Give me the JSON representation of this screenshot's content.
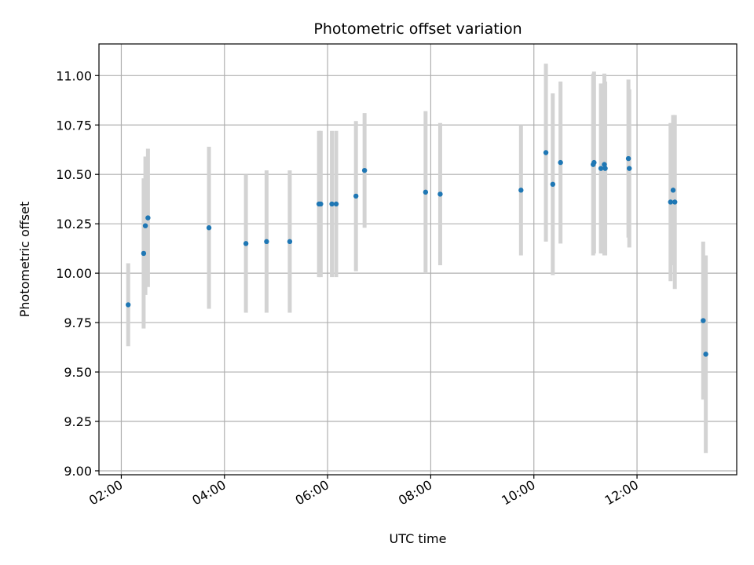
{
  "chart_data": {
    "type": "scatter",
    "title": "Photometric offset variation",
    "xlabel": "UTC time",
    "ylabel": "Photometric offset",
    "x_ticks": [
      "02:00",
      "04:00",
      "06:00",
      "08:00",
      "10:00",
      "12:00"
    ],
    "y_ticks": [
      "9.00",
      "9.25",
      "9.50",
      "9.75",
      "10.00",
      "10.25",
      "10.50",
      "10.75",
      "11.00"
    ],
    "xlim": [
      "01:34",
      "13:56"
    ],
    "ylim": [
      8.98,
      11.16
    ],
    "grid": true,
    "colors": {
      "points": "#1f77b4",
      "error_bars": "#d3d3d3",
      "grid": "#b0b0b0"
    },
    "series": [
      {
        "values": [
          {
            "x": "02:08",
            "y": 9.84,
            "err": 0.21
          },
          {
            "x": "02:26",
            "y": 10.1,
            "err": 0.38
          },
          {
            "x": "02:28",
            "y": 10.24,
            "err": 0.35
          },
          {
            "x": "02:31",
            "y": 10.28,
            "err": 0.35
          },
          {
            "x": "03:42",
            "y": 10.23,
            "err": 0.41
          },
          {
            "x": "04:25",
            "y": 10.15,
            "err": 0.35
          },
          {
            "x": "04:49",
            "y": 10.16,
            "err": 0.36
          },
          {
            "x": "05:16",
            "y": 10.16,
            "err": 0.36
          },
          {
            "x": "05:50",
            "y": 10.35,
            "err": 0.37
          },
          {
            "x": "05:52",
            "y": 10.35,
            "err": 0.37
          },
          {
            "x": "06:05",
            "y": 10.35,
            "err": 0.37
          },
          {
            "x": "06:10",
            "y": 10.35,
            "err": 0.37
          },
          {
            "x": "06:33",
            "y": 10.39,
            "err": 0.38
          },
          {
            "x": "06:43",
            "y": 10.52,
            "err": 0.29
          },
          {
            "x": "07:54",
            "y": 10.41,
            "err": 0.41
          },
          {
            "x": "08:11",
            "y": 10.4,
            "err": 0.36
          },
          {
            "x": "09:45",
            "y": 10.42,
            "err": 0.33
          },
          {
            "x": "10:14",
            "y": 10.61,
            "err": 0.45
          },
          {
            "x": "10:22",
            "y": 10.45,
            "err": 0.46
          },
          {
            "x": "10:31",
            "y": 10.56,
            "err": 0.41
          },
          {
            "x": "11:09",
            "y": 10.55,
            "err": 0.46
          },
          {
            "x": "11:10",
            "y": 10.56,
            "err": 0.46
          },
          {
            "x": "11:18",
            "y": 10.53,
            "err": 0.43
          },
          {
            "x": "11:22",
            "y": 10.55,
            "err": 0.46
          },
          {
            "x": "11:23",
            "y": 10.53,
            "err": 0.44
          },
          {
            "x": "11:50",
            "y": 10.58,
            "err": 0.4
          },
          {
            "x": "11:51",
            "y": 10.53,
            "err": 0.4
          },
          {
            "x": "12:39",
            "y": 10.36,
            "err": 0.4
          },
          {
            "x": "12:42",
            "y": 10.42,
            "err": 0.38
          },
          {
            "x": "12:44",
            "y": 10.36,
            "err": 0.44
          },
          {
            "x": "13:17",
            "y": 9.76,
            "err": 0.4
          },
          {
            "x": "13:20",
            "y": 9.59,
            "err": 0.5
          }
        ]
      }
    ]
  }
}
